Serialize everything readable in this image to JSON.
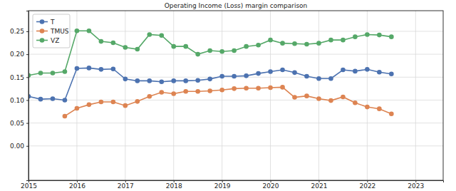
{
  "chart_data": {
    "type": "line",
    "title": "Operating Income (Loss) margin comparison",
    "x": [
      2015,
      2015.25,
      2015.5,
      2015.75,
      2016,
      2016.25,
      2016.5,
      2016.75,
      2017,
      2017.25,
      2017.5,
      2017.75,
      2018,
      2018.25,
      2018.5,
      2018.75,
      2019,
      2019.25,
      2019.5,
      2019.75,
      2020,
      2020.25,
      2020.5,
      2020.75,
      2021,
      2021.25,
      2021.5,
      2021.75,
      2022,
      2022.25,
      2022.5
    ],
    "series": [
      {
        "name": "T",
        "color": "#4c72b0",
        "marker": "circle",
        "line_style": "solid",
        "values": [
          0.108,
          0.102,
          0.103,
          0.1,
          0.169,
          0.17,
          0.167,
          0.168,
          0.146,
          0.142,
          0.142,
          0.14,
          0.142,
          0.142,
          0.143,
          0.146,
          0.152,
          0.152,
          0.153,
          0.158,
          0.162,
          0.166,
          0.16,
          0.152,
          0.147,
          0.147,
          0.166,
          0.163,
          0.167,
          0.161,
          0.157
        ]
      },
      {
        "name": "TMUS",
        "color": "#dd8452",
        "marker": "circle",
        "line_style": "solid",
        "values": [
          null,
          null,
          null,
          0.065,
          0.082,
          0.09,
          0.096,
          0.096,
          0.088,
          0.097,
          0.108,
          0.117,
          0.114,
          0.119,
          0.119,
          0.12,
          0.122,
          0.125,
          0.126,
          0.126,
          0.127,
          0.128,
          0.106,
          0.109,
          0.103,
          0.099,
          0.107,
          0.094,
          0.085,
          0.081,
          0.07
        ]
      },
      {
        "name": "VZ",
        "color": "#55a868",
        "marker": "circle",
        "line_style": "solid",
        "values": [
          0.154,
          0.159,
          0.159,
          0.162,
          0.251,
          0.251,
          0.228,
          0.225,
          0.215,
          0.211,
          0.243,
          0.241,
          0.217,
          0.217,
          0.2,
          0.208,
          0.206,
          0.208,
          0.217,
          0.22,
          0.231,
          0.224,
          0.223,
          0.222,
          0.224,
          0.231,
          0.231,
          0.238,
          0.243,
          0.242,
          0.238
        ]
      }
    ],
    "xlim": [
      2015,
      2023.57
    ],
    "xticks": [
      2015,
      2016,
      2017,
      2018,
      2019,
      2020,
      2021,
      2022,
      2023
    ],
    "ylim": [
      -0.075,
      0.295
    ],
    "yticks": [
      {
        "value": 0,
        "label": "0.00"
      },
      {
        "value": 0.05,
        "label": "0.05"
      },
      {
        "value": 0.1,
        "label": "0.10"
      },
      {
        "value": 0.15,
        "label": "0.15"
      },
      {
        "value": 0.2,
        "label": "0.20"
      },
      {
        "value": 0.25,
        "label": "0.25"
      }
    ],
    "grid": true,
    "legend": "upper-left"
  }
}
